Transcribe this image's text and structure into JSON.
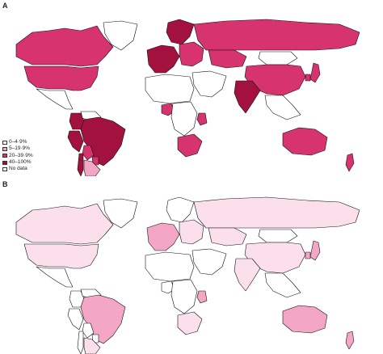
{
  "panels": [
    {
      "label": "A"
    },
    {
      "label": "B"
    }
  ],
  "legend": {
    "items": [
      {
        "label": "0–4·9%",
        "color": "#ffffff"
      },
      {
        "label": "5–19·9%",
        "color": "#f4a6c6"
      },
      {
        "label": "20–39·9%",
        "color": "#d6336f"
      },
      {
        "label": "40–100%",
        "color": "#a3123f"
      },
      {
        "label": "No data",
        "color": "#ffffff"
      }
    ]
  },
  "colors": {
    "level_0": "#ffffff",
    "level_1": "#fbe0ec",
    "level_2": "#f4a6c6",
    "level_3": "#d6336f",
    "level_4": "#a3123f",
    "border": "#111111"
  },
  "map_a": {
    "regions": [
      {
        "name": "Canada",
        "level": 3
      },
      {
        "name": "United States",
        "level": 3
      },
      {
        "name": "Mexico",
        "level": 0
      },
      {
        "name": "Greenland",
        "level": 0
      },
      {
        "name": "Colombia",
        "level": 4
      },
      {
        "name": "Venezuela",
        "level": 0
      },
      {
        "name": "Peru",
        "level": 4
      },
      {
        "name": "Brazil",
        "level": 4
      },
      {
        "name": "Bolivia",
        "level": 3
      },
      {
        "name": "Paraguay",
        "level": 3
      },
      {
        "name": "Argentina",
        "level": 2
      },
      {
        "name": "Chile",
        "level": 4
      },
      {
        "name": "Western Europe",
        "level": 4
      },
      {
        "name": "Scandinavia",
        "level": 4
      },
      {
        "name": "Eastern Europe",
        "level": 3
      },
      {
        "name": "Russia",
        "level": 3
      },
      {
        "name": "Kazakhstan",
        "level": 3
      },
      {
        "name": "Mongolia",
        "level": 0
      },
      {
        "name": "China",
        "level": 3
      },
      {
        "name": "Japan",
        "level": 3
      },
      {
        "name": "South Korea",
        "level": 3
      },
      {
        "name": "India",
        "level": 4
      },
      {
        "name": "Middle East",
        "level": 0
      },
      {
        "name": "North Africa",
        "level": 0
      },
      {
        "name": "Nigeria",
        "level": 3
      },
      {
        "name": "Central Africa",
        "level": 0
      },
      {
        "name": "Kenya",
        "level": 3
      },
      {
        "name": "Southern Africa",
        "level": 3
      },
      {
        "name": "Southeast Asia",
        "level": 0
      },
      {
        "name": "Australia",
        "level": 3
      },
      {
        "name": "New Zealand",
        "level": 3
      }
    ]
  },
  "map_b": {
    "regions": [
      {
        "name": "Canada",
        "level": 1
      },
      {
        "name": "United States",
        "level": 1
      },
      {
        "name": "Mexico",
        "level": 0
      },
      {
        "name": "Greenland",
        "level": 0
      },
      {
        "name": "Colombia",
        "level": 0
      },
      {
        "name": "Venezuela",
        "level": 0
      },
      {
        "name": "Peru",
        "level": 0
      },
      {
        "name": "Brazil",
        "level": 2
      },
      {
        "name": "Bolivia",
        "level": 0
      },
      {
        "name": "Paraguay",
        "level": 0
      },
      {
        "name": "Argentina",
        "level": 1
      },
      {
        "name": "Chile",
        "level": 0
      },
      {
        "name": "Western Europe",
        "level": 2
      },
      {
        "name": "Scandinavia",
        "level": 0
      },
      {
        "name": "Eastern Europe",
        "level": 1
      },
      {
        "name": "Russia",
        "level": 1
      },
      {
        "name": "Kazakhstan",
        "level": 1
      },
      {
        "name": "Mongolia",
        "level": 0
      },
      {
        "name": "China",
        "level": 1
      },
      {
        "name": "Japan",
        "level": 2
      },
      {
        "name": "South Korea",
        "level": 2
      },
      {
        "name": "India",
        "level": 1
      },
      {
        "name": "Middle East",
        "level": 0
      },
      {
        "name": "North Africa",
        "level": 0
      },
      {
        "name": "Nigeria",
        "level": 0
      },
      {
        "name": "Central Africa",
        "level": 0
      },
      {
        "name": "Kenya",
        "level": 2
      },
      {
        "name": "Southern Africa",
        "level": 1
      },
      {
        "name": "Southeast Asia",
        "level": 0
      },
      {
        "name": "Australia",
        "level": 2
      },
      {
        "name": "New Zealand",
        "level": 2
      }
    ]
  }
}
